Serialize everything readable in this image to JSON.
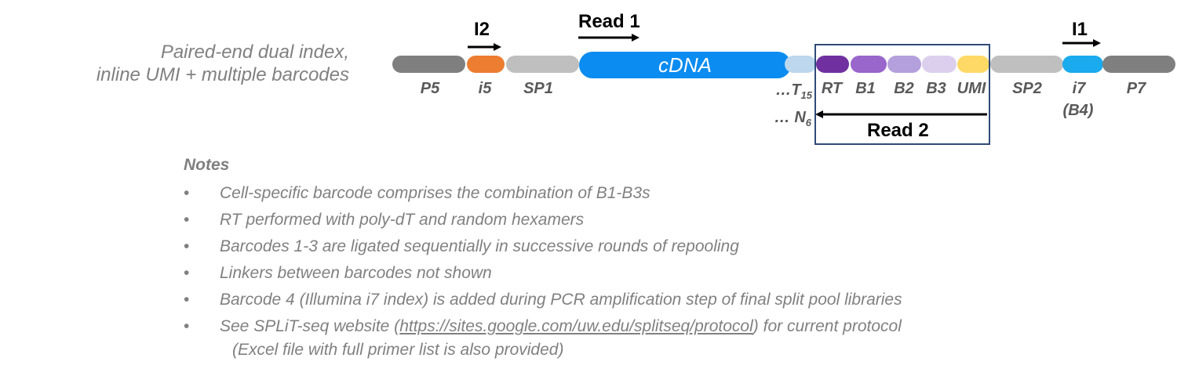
{
  "title_line1": "Paired-end dual index,",
  "title_line2": "inline UMI + multiple barcodes",
  "segments": [
    {
      "id": "P5",
      "label": "P5",
      "color": "#7f7f7f"
    },
    {
      "id": "i5",
      "label": "i5",
      "color": "#ed7d31"
    },
    {
      "id": "SP1",
      "label": "SP1",
      "color": "#bfbfbf"
    },
    {
      "id": "cDNA",
      "label": "cDNA",
      "color": "#0a8cf0"
    },
    {
      "id": "T15",
      "label": "…T",
      "sub": "15",
      "color": "#bdd7ee"
    },
    {
      "id": "RT",
      "label": "RT",
      "color": "#7030a0"
    },
    {
      "id": "B1",
      "label": "B1",
      "color": "#9966cc"
    },
    {
      "id": "B2",
      "label": "B2",
      "color": "#b4a0dc"
    },
    {
      "id": "B3",
      "label": "B3",
      "color": "#dccfee"
    },
    {
      "id": "UMI",
      "label": "UMI",
      "color": "#ffd966"
    },
    {
      "id": "SP2",
      "label": "SP2",
      "color": "#bfbfbf"
    },
    {
      "id": "i7",
      "label": "i7",
      "label2": "(B4)",
      "color": "#1aaaee"
    },
    {
      "id": "P7",
      "label": "P7",
      "color": "#7f7f7f"
    }
  ],
  "n6": {
    "label": "… N",
    "sub": "6"
  },
  "reads": {
    "i2": "I2",
    "read1": "Read 1",
    "i1": "I1",
    "read2": "Read 2"
  },
  "notes": {
    "title": "Notes",
    "bullet": "•",
    "items": [
      "Cell-specific barcode comprises the combination of B1-B3s",
      "RT performed with poly-dT and random hexamers",
      "Barcodes 1-3 are ligated sequentially in successive rounds of repooling",
      "Linkers between barcodes not shown",
      "Barcode 4 (Illumina i7 index) is added during PCR amplification step of final split pool libraries"
    ],
    "last_prefix": "See SPLiT-seq website (",
    "last_link": "https://sites.google.com/uw.edu/splitseq/protocol",
    "last_suffix": ") for current protocol",
    "last_sub": "(Excel file with full primer list is also provided)"
  }
}
